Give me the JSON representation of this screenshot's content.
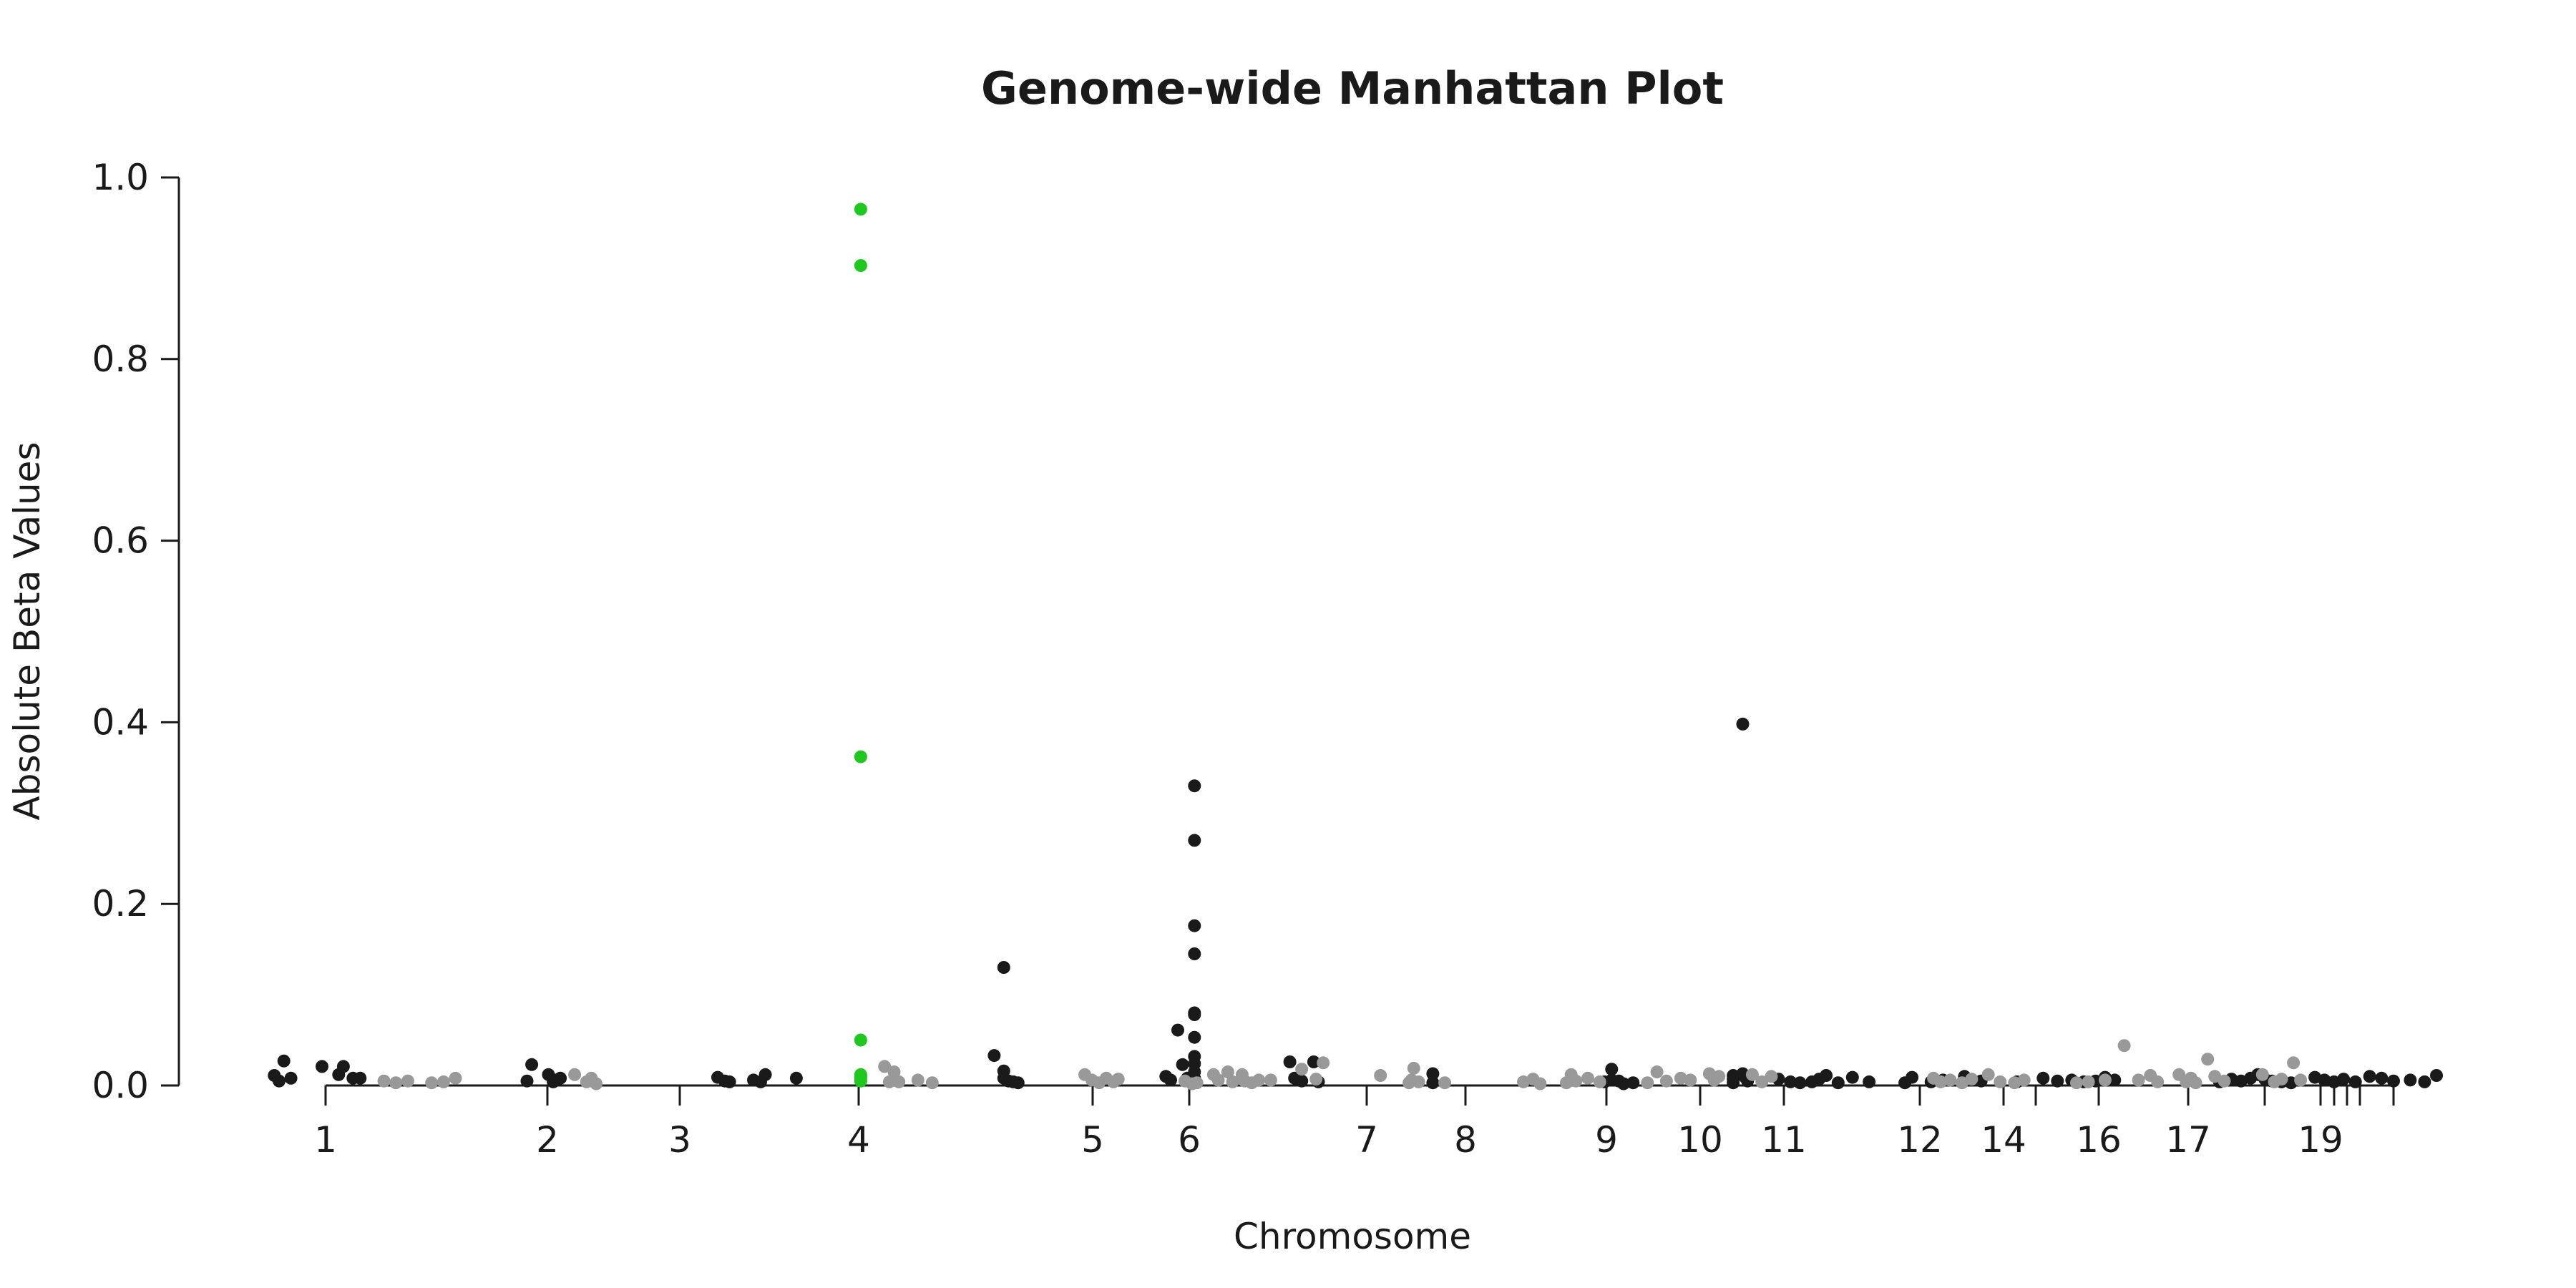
{
  "chart_data": {
    "type": "scatter",
    "title": "Genome-wide Manhattan Plot",
    "xlabel": "Chromosome",
    "ylabel": "Absolute Beta Values",
    "ylim": [
      0,
      1.0
    ],
    "y_ticks": [
      "0.0",
      "0.2",
      "0.4",
      "0.6",
      "0.8",
      "1.0"
    ],
    "x_tick_labels": [
      "1",
      "2",
      "3",
      "4",
      "5",
      "6",
      "7",
      "8",
      "9",
      "10",
      "11",
      "12",
      "14",
      "16",
      "17",
      "19"
    ],
    "grid": false,
    "legend": "none",
    "colors": {
      "odd_chromosomes": "#1a1a1a",
      "even_chromosomes": "#999999",
      "highlight": "#1ec81e"
    },
    "series": [
      {
        "values": [
          [
            0.4,
            0.011
          ],
          [
            0.6,
            0.005
          ],
          [
            0.8,
            0.027
          ],
          [
            1.1,
            0.008
          ],
          [
            2.4,
            0.021
          ],
          [
            3.1,
            0.012
          ],
          [
            3.3,
            0.021
          ],
          [
            3.7,
            0.008
          ],
          [
            4.0,
            0.008
          ],
          [
            11.0,
            0.005
          ],
          [
            11.2,
            0.023
          ],
          [
            11.9,
            0.012
          ],
          [
            12.2,
            0.006
          ],
          [
            12.4,
            0.008
          ],
          [
            12.1,
            0.004
          ],
          [
            19.0,
            0.009
          ],
          [
            19.3,
            0.005
          ],
          [
            19.5,
            0.004
          ],
          [
            20.5,
            0.006
          ],
          [
            20.8,
            0.004
          ],
          [
            21.0,
            0.012
          ],
          [
            22.3,
            0.008
          ],
          [
            31.0,
            0.13
          ],
          [
            30.6,
            0.033
          ],
          [
            31.0,
            0.016
          ],
          [
            31.0,
            0.008
          ],
          [
            31.2,
            0.005
          ],
          [
            31.4,
            0.004
          ],
          [
            31.6,
            0.003
          ],
          [
            38.3,
            0.061
          ],
          [
            38.5,
            0.023
          ],
          [
            38.7,
            0.008
          ],
          [
            37.8,
            0.01
          ],
          [
            38.0,
            0.006
          ],
          [
            39.0,
            0.33
          ],
          [
            39.0,
            0.27
          ],
          [
            39.0,
            0.176
          ],
          [
            39.0,
            0.145
          ],
          [
            39.0,
            0.08
          ],
          [
            39.0,
            0.078
          ],
          [
            39.0,
            0.053
          ],
          [
            39.0,
            0.032
          ],
          [
            39.0,
            0.024
          ],
          [
            39.0,
            0.015
          ],
          [
            39.0,
            0.008
          ],
          [
            43.0,
            0.026
          ],
          [
            43.2,
            0.008
          ],
          [
            43.5,
            0.005
          ],
          [
            44.0,
            0.026
          ],
          [
            44.2,
            0.004
          ],
          [
            49.0,
            0.013
          ],
          [
            49.0,
            0.003
          ],
          [
            56.5,
            0.018
          ],
          [
            56.5,
            0.006
          ],
          [
            57.0,
            0.002
          ],
          [
            57.4,
            0.003
          ],
          [
            56.2,
            0.004
          ],
          [
            56.8,
            0.005
          ],
          [
            61.6,
            0.011
          ],
          [
            61.6,
            0.007
          ],
          [
            61.6,
            0.003
          ],
          [
            62.0,
            0.398
          ],
          [
            62.0,
            0.013
          ],
          [
            62.1,
            0.009
          ],
          [
            62.2,
            0.005
          ],
          [
            63.5,
            0.007
          ],
          [
            64.0,
            0.004
          ],
          [
            64.4,
            0.003
          ],
          [
            64.9,
            0.004
          ],
          [
            65.2,
            0.007
          ],
          [
            65.5,
            0.011
          ],
          [
            66.0,
            0.003
          ],
          [
            66.6,
            0.009
          ],
          [
            67.3,
            0.004
          ],
          [
            68.8,
            0.003
          ],
          [
            69.1,
            0.009
          ],
          [
            69.9,
            0.004
          ],
          [
            70.4,
            0.006
          ],
          [
            71.3,
            0.01
          ],
          [
            72.0,
            0.005
          ],
          [
            73.5,
            0.004
          ],
          [
            74.6,
            0.008
          ],
          [
            75.2,
            0.005
          ],
          [
            75.8,
            0.006
          ],
          [
            76.3,
            0.004
          ],
          [
            76.8,
            0.005
          ],
          [
            77.2,
            0.009
          ],
          [
            77.6,
            0.006
          ],
          [
            82.0,
            0.004
          ],
          [
            82.5,
            0.007
          ],
          [
            82.9,
            0.005
          ],
          [
            83.3,
            0.008
          ],
          [
            83.6,
            0.012
          ],
          [
            83.9,
            0.007
          ],
          [
            84.2,
            0.005
          ],
          [
            84.6,
            0.004
          ],
          [
            85.0,
            0.003
          ],
          [
            86.0,
            0.009
          ],
          [
            86.4,
            0.006
          ],
          [
            86.8,
            0.004
          ],
          [
            87.2,
            0.007
          ],
          [
            87.7,
            0.004
          ],
          [
            88.3,
            0.01
          ],
          [
            88.8,
            0.008
          ],
          [
            89.3,
            0.005
          ],
          [
            90.0,
            0.006
          ],
          [
            90.6,
            0.004
          ],
          [
            91.1,
            0.011
          ]
        ]
      },
      {
        "values": [
          [
            5.0,
            0.005
          ],
          [
            5.5,
            0.003
          ],
          [
            6.0,
            0.005
          ],
          [
            7.0,
            0.003
          ],
          [
            7.5,
            0.004
          ],
          [
            8.0,
            0.008
          ],
          [
            13.0,
            0.012
          ],
          [
            13.5,
            0.004
          ],
          [
            13.7,
            0.008
          ],
          [
            13.9,
            0.002
          ],
          [
            26.0,
            0.021
          ],
          [
            26.2,
            0.004
          ],
          [
            26.4,
            0.015
          ],
          [
            26.6,
            0.004
          ],
          [
            27.4,
            0.006
          ],
          [
            28.0,
            0.003
          ],
          [
            34.4,
            0.012
          ],
          [
            34.7,
            0.006
          ],
          [
            35.0,
            0.003
          ],
          [
            35.3,
            0.008
          ],
          [
            35.6,
            0.004
          ],
          [
            35.8,
            0.007
          ],
          [
            38.6,
            0.005
          ],
          [
            38.9,
            0.002
          ],
          [
            39.1,
            0.003
          ],
          [
            39.8,
            0.012
          ],
          [
            40.0,
            0.006
          ],
          [
            40.4,
            0.015
          ],
          [
            40.6,
            0.004
          ],
          [
            41.0,
            0.012
          ],
          [
            41.1,
            0.005
          ],
          [
            41.4,
            0.003
          ],
          [
            41.7,
            0.006
          ],
          [
            42.2,
            0.006
          ],
          [
            43.5,
            0.018
          ],
          [
            44.1,
            0.007
          ],
          [
            44.4,
            0.025
          ],
          [
            46.8,
            0.011
          ],
          [
            48.0,
            0.003
          ],
          [
            48.1,
            0.006
          ],
          [
            48.2,
            0.019
          ],
          [
            48.4,
            0.004
          ],
          [
            49.5,
            0.003
          ],
          [
            52.8,
            0.004
          ],
          [
            53.2,
            0.007
          ],
          [
            53.5,
            0.002
          ],
          [
            54.6,
            0.003
          ],
          [
            54.8,
            0.012
          ],
          [
            55.0,
            0.005
          ],
          [
            55.5,
            0.008
          ],
          [
            56.0,
            0.004
          ],
          [
            58.0,
            0.003
          ],
          [
            58.4,
            0.015
          ],
          [
            58.8,
            0.005
          ],
          [
            59.4,
            0.008
          ],
          [
            59.8,
            0.006
          ],
          [
            60.6,
            0.013
          ],
          [
            60.8,
            0.006
          ],
          [
            61.0,
            0.01
          ],
          [
            62.4,
            0.012
          ],
          [
            62.8,
            0.004
          ],
          [
            63.2,
            0.01
          ],
          [
            70.0,
            0.008
          ],
          [
            70.3,
            0.004
          ],
          [
            70.7,
            0.006
          ],
          [
            71.2,
            0.003
          ],
          [
            71.6,
            0.007
          ],
          [
            72.3,
            0.012
          ],
          [
            72.8,
            0.004
          ],
          [
            73.4,
            0.003
          ],
          [
            73.8,
            0.006
          ],
          [
            76.0,
            0.003
          ],
          [
            76.5,
            0.004
          ],
          [
            77.2,
            0.006
          ],
          [
            78.0,
            0.044
          ],
          [
            78.6,
            0.006
          ],
          [
            79.1,
            0.011
          ],
          [
            79.4,
            0.004
          ],
          [
            80.3,
            0.012
          ],
          [
            80.6,
            0.004
          ],
          [
            80.8,
            0.008
          ],
          [
            81.0,
            0.003
          ],
          [
            81.5,
            0.029
          ],
          [
            81.8,
            0.01
          ],
          [
            82.2,
            0.005
          ],
          [
            83.8,
            0.012
          ],
          [
            84.3,
            0.004
          ],
          [
            84.6,
            0.007
          ],
          [
            85.1,
            0.025
          ],
          [
            85.4,
            0.006
          ]
        ]
      },
      {
        "values": [
          [
            25.0,
            0.965
          ],
          [
            25.0,
            0.903
          ],
          [
            25.0,
            0.362
          ],
          [
            25.0,
            0.05
          ],
          [
            25.0,
            0.012
          ],
          [
            25.0,
            0.008
          ],
          [
            25.0,
            0.005
          ],
          [
            25.0,
            0.01
          ]
        ]
      }
    ]
  }
}
